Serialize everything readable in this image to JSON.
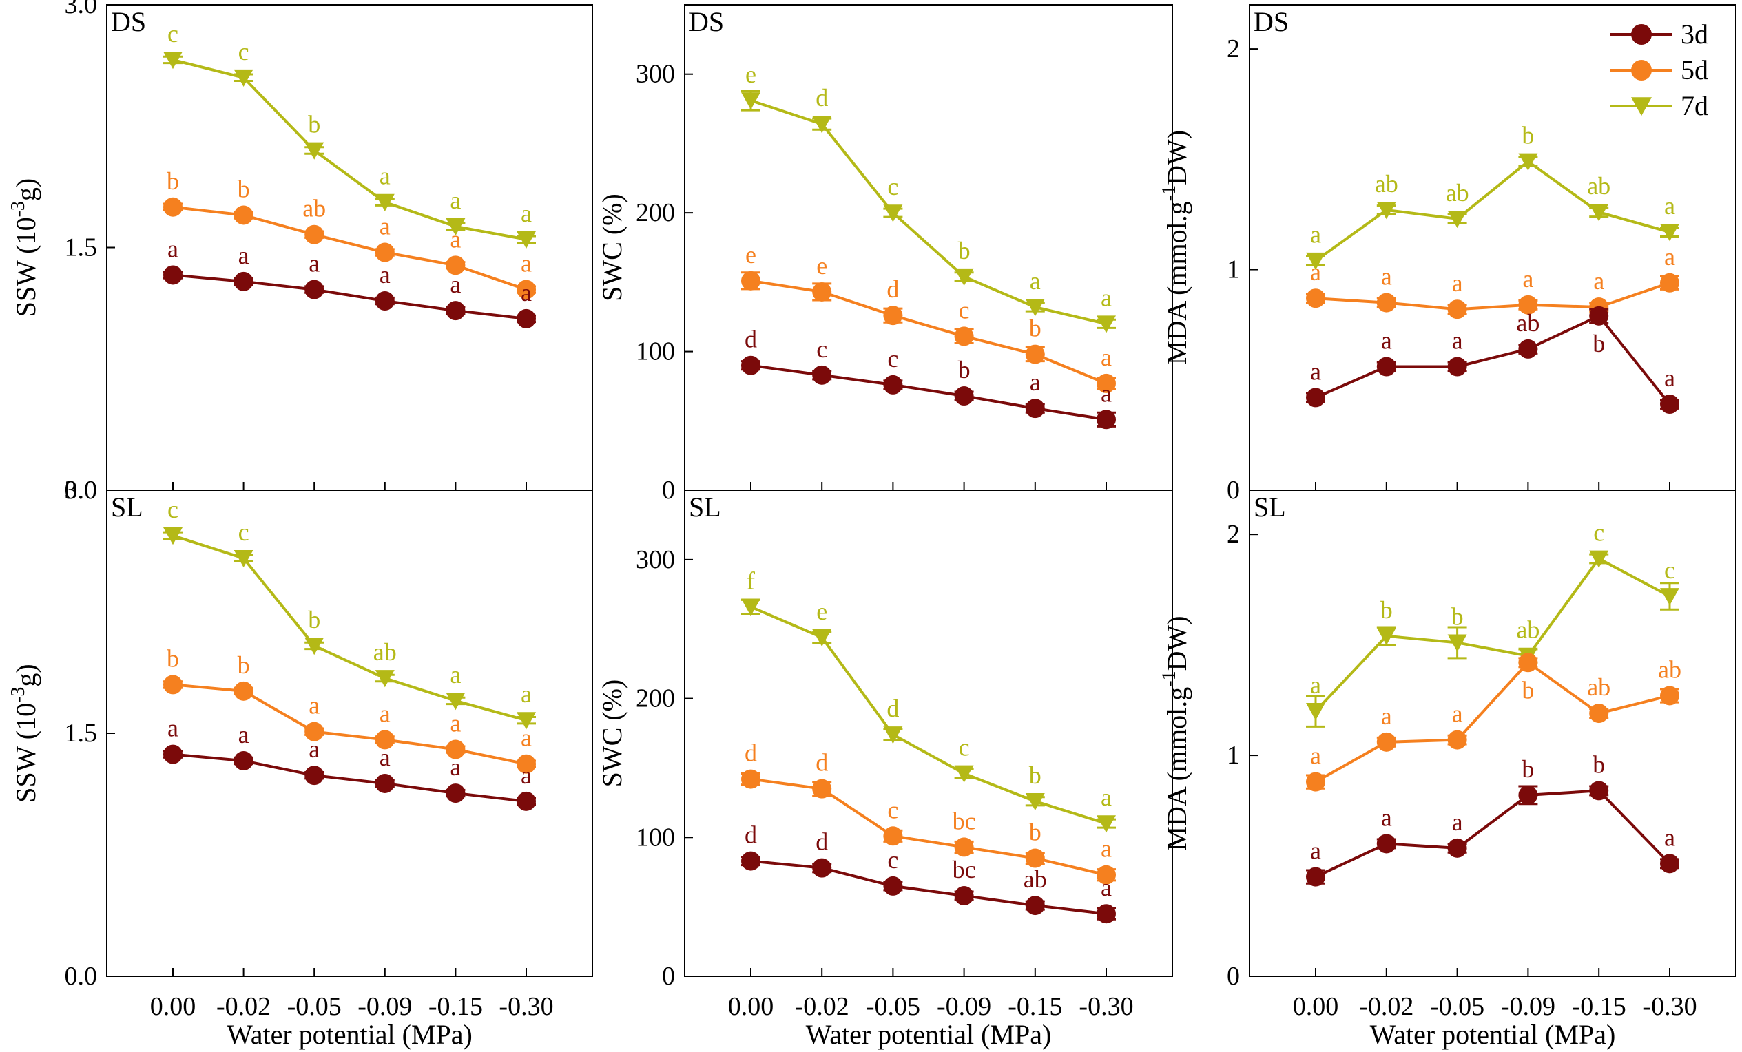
{
  "chart_data": {
    "type": "line",
    "x_tick_labels": [
      "0.00",
      "-0.02",
      "-0.05",
      "-0.09",
      "-0.15",
      "-0.30"
    ],
    "xlabel": "Water potential (MPa)",
    "series_meta": [
      {
        "key": "3d",
        "name": "3d",
        "color": "#7b0a0a",
        "marker": "circle"
      },
      {
        "key": "5d",
        "name": "5d",
        "color": "#f5801f",
        "marker": "circle"
      },
      {
        "key": "7d",
        "name": "7d",
        "color": "#b4b917",
        "marker": "triangle-down"
      }
    ],
    "legend": {
      "position": "top-right",
      "entries": [
        "3d",
        "5d",
        "7d"
      ]
    },
    "panels": [
      {
        "id": "ssw-ds",
        "label": "DS",
        "ylabel_main": "SSW (10",
        "ylabel_sup": "-3",
        "ylabel_tail": "g)",
        "ylim": [
          0,
          3.0
        ],
        "yticks": [
          0,
          1.5,
          3.0
        ],
        "ytick_labels": [
          "0.0",
          "1.5",
          "3.0"
        ],
        "series": {
          "3d": {
            "values": [
              1.33,
              1.29,
              1.24,
              1.17,
              1.11,
              1.06
            ],
            "errors": [
              0.02,
              0.02,
              0.02,
              0.02,
              0.02,
              0.02
            ],
            "letters": [
              "a",
              "a",
              "a",
              "a",
              "a",
              "a"
            ]
          },
          "5d": {
            "values": [
              1.75,
              1.7,
              1.58,
              1.47,
              1.39,
              1.24
            ],
            "errors": [
              0.02,
              0.02,
              0.02,
              0.02,
              0.02,
              0.02
            ],
            "letters": [
              "b",
              "b",
              "ab",
              "a",
              "a",
              "a"
            ]
          },
          "7d": {
            "values": [
              2.66,
              2.55,
              2.1,
              1.78,
              1.63,
              1.55
            ],
            "errors": [
              0.02,
              0.02,
              0.02,
              0.02,
              0.02,
              0.02
            ],
            "letters": [
              "c",
              "c",
              "b",
              "a",
              "a",
              "a"
            ]
          }
        }
      },
      {
        "id": "swc-ds",
        "label": "DS",
        "ylabel_main": "SWC (%)",
        "ylabel_sup": "",
        "ylabel_tail": "",
        "ylim": [
          0,
          350
        ],
        "yticks": [
          0,
          100,
          200,
          300
        ],
        "ytick_labels": [
          "0",
          "100",
          "200",
          "300"
        ],
        "series": {
          "3d": {
            "values": [
              90,
              83,
              76,
              68,
              59,
              51
            ],
            "errors": [
              3,
              3,
              3,
              3,
              3,
              5
            ],
            "letters": [
              "d",
              "c",
              "c",
              "b",
              "a",
              "a"
            ]
          },
          "5d": {
            "values": [
              151,
              143,
              126,
              111,
              98,
              77
            ],
            "errors": [
              6,
              6,
              5,
              5,
              5,
              4
            ],
            "letters": [
              "e",
              "e",
              "d",
              "c",
              "b",
              "a"
            ]
          },
          "7d": {
            "values": [
              281,
              264,
              200,
              154,
              132,
              120
            ],
            "errors": [
              7,
              4,
              3,
              3,
              3,
              3
            ],
            "letters": [
              "e",
              "d",
              "c",
              "b",
              "a",
              "a"
            ]
          }
        }
      },
      {
        "id": "mda-ds",
        "label": "DS",
        "ylabel_main": "MDA (mmol.g",
        "ylabel_sup": "-1",
        "ylabel_tail": "DW)",
        "ylim": [
          0,
          2.2
        ],
        "yticks": [
          0,
          1,
          2
        ],
        "ytick_labels": [
          "0",
          "1",
          "2"
        ],
        "series": {
          "3d": {
            "values": [
              0.42,
              0.56,
              0.56,
              0.64,
              0.79,
              0.39
            ],
            "errors": [
              0.02,
              0.02,
              0.02,
              0.02,
              0.03,
              0.02
            ],
            "letters": [
              "a",
              "a",
              "a",
              "ab",
              "b",
              "a"
            ],
            "letter_below": [
              false,
              false,
              false,
              false,
              true,
              false
            ]
          },
          "5d": {
            "values": [
              0.87,
              0.85,
              0.82,
              0.84,
              0.83,
              0.94
            ],
            "errors": [
              0.02,
              0.02,
              0.02,
              0.02,
              0.02,
              0.03
            ],
            "letters": [
              "a",
              "a",
              "a",
              "a",
              "a",
              "a"
            ]
          },
          "7d": {
            "values": [
              1.04,
              1.27,
              1.23,
              1.49,
              1.26,
              1.17
            ],
            "errors": [
              0.02,
              0.02,
              0.02,
              0.02,
              0.02,
              0.02
            ],
            "letters": [
              "a",
              "ab",
              "ab",
              "b",
              "ab",
              "a"
            ]
          }
        }
      },
      {
        "id": "ssw-sl",
        "label": "SL",
        "ylabel_main": "SSW (10",
        "ylabel_sup": "-3",
        "ylabel_tail": "g)",
        "ylim": [
          0,
          3.0
        ],
        "yticks": [
          0,
          1.5,
          3.0
        ],
        "ytick_labels": [
          "0.0",
          "1.5",
          "3.0"
        ],
        "series": {
          "3d": {
            "values": [
              1.37,
              1.33,
              1.24,
              1.19,
              1.13,
              1.08
            ],
            "errors": [
              0.02,
              0.02,
              0.02,
              0.02,
              0.02,
              0.02
            ],
            "letters": [
              "a",
              "a",
              "a",
              "a",
              "a",
              "a"
            ]
          },
          "5d": {
            "values": [
              1.8,
              1.76,
              1.51,
              1.46,
              1.4,
              1.31
            ],
            "errors": [
              0.02,
              0.02,
              0.02,
              0.02,
              0.02,
              0.02
            ],
            "letters": [
              "b",
              "b",
              "a",
              "a",
              "a",
              "a"
            ]
          },
          "7d": {
            "values": [
              2.72,
              2.58,
              2.04,
              1.84,
              1.7,
              1.58
            ],
            "errors": [
              0.02,
              0.02,
              0.02,
              0.02,
              0.02,
              0.02
            ],
            "letters": [
              "c",
              "c",
              "b",
              "ab",
              "a",
              "a"
            ]
          }
        }
      },
      {
        "id": "swc-sl",
        "label": "SL",
        "ylabel_main": "SWC (%)",
        "ylabel_sup": "",
        "ylabel_tail": "",
        "ylim": [
          0,
          350
        ],
        "yticks": [
          0,
          100,
          200,
          300
        ],
        "ytick_labels": [
          "0",
          "100",
          "200",
          "300"
        ],
        "series": {
          "3d": {
            "values": [
              83,
              78,
              65,
              58,
              51,
              45
            ],
            "errors": [
              3,
              3,
              3,
              3,
              3,
              4
            ],
            "letters": [
              "d",
              "d",
              "c",
              "bc",
              "ab",
              "a"
            ]
          },
          "5d": {
            "values": [
              142,
              135,
              101,
              93,
              85,
              73
            ],
            "errors": [
              4,
              5,
              4,
              4,
              4,
              4
            ],
            "letters": [
              "d",
              "d",
              "c",
              "bc",
              "b",
              "a"
            ]
          },
          "7d": {
            "values": [
              266,
              244,
              174,
              146,
              126,
              110
            ],
            "errors": [
              5,
              4,
              4,
              3,
              3,
              3
            ],
            "letters": [
              "f",
              "e",
              "d",
              "c",
              "b",
              "a"
            ]
          }
        }
      },
      {
        "id": "mda-sl",
        "label": "SL",
        "ylabel_main": "MDA (mmol.g",
        "ylabel_sup": "-1",
        "ylabel_tail": "DW)",
        "ylim": [
          0,
          2.2
        ],
        "yticks": [
          0,
          1,
          2
        ],
        "ytick_labels": [
          "0",
          "1",
          "2"
        ],
        "series": {
          "3d": {
            "values": [
              0.45,
              0.6,
              0.58,
              0.82,
              0.84,
              0.51
            ],
            "errors": [
              0.03,
              0.02,
              0.02,
              0.04,
              0.02,
              0.02
            ],
            "letters": [
              "a",
              "a",
              "a",
              "b",
              "b",
              "a"
            ]
          },
          "5d": {
            "values": [
              0.88,
              1.06,
              1.07,
              1.42,
              1.19,
              1.27
            ],
            "errors": [
              0.03,
              0.02,
              0.02,
              0.02,
              0.02,
              0.03
            ],
            "letters": [
              "a",
              "a",
              "a",
              "b",
              "ab",
              "ab"
            ],
            "letter_below": [
              false,
              false,
              false,
              true,
              false,
              false
            ]
          },
          "7d": {
            "values": [
              1.2,
              1.54,
              1.51,
              1.45,
              1.89,
              1.72
            ],
            "errors": [
              0.07,
              0.04,
              0.07,
              0.03,
              0.02,
              0.06
            ],
            "letters": [
              "a",
              "b",
              "b",
              "ab",
              "c",
              "c"
            ]
          }
        }
      }
    ]
  }
}
